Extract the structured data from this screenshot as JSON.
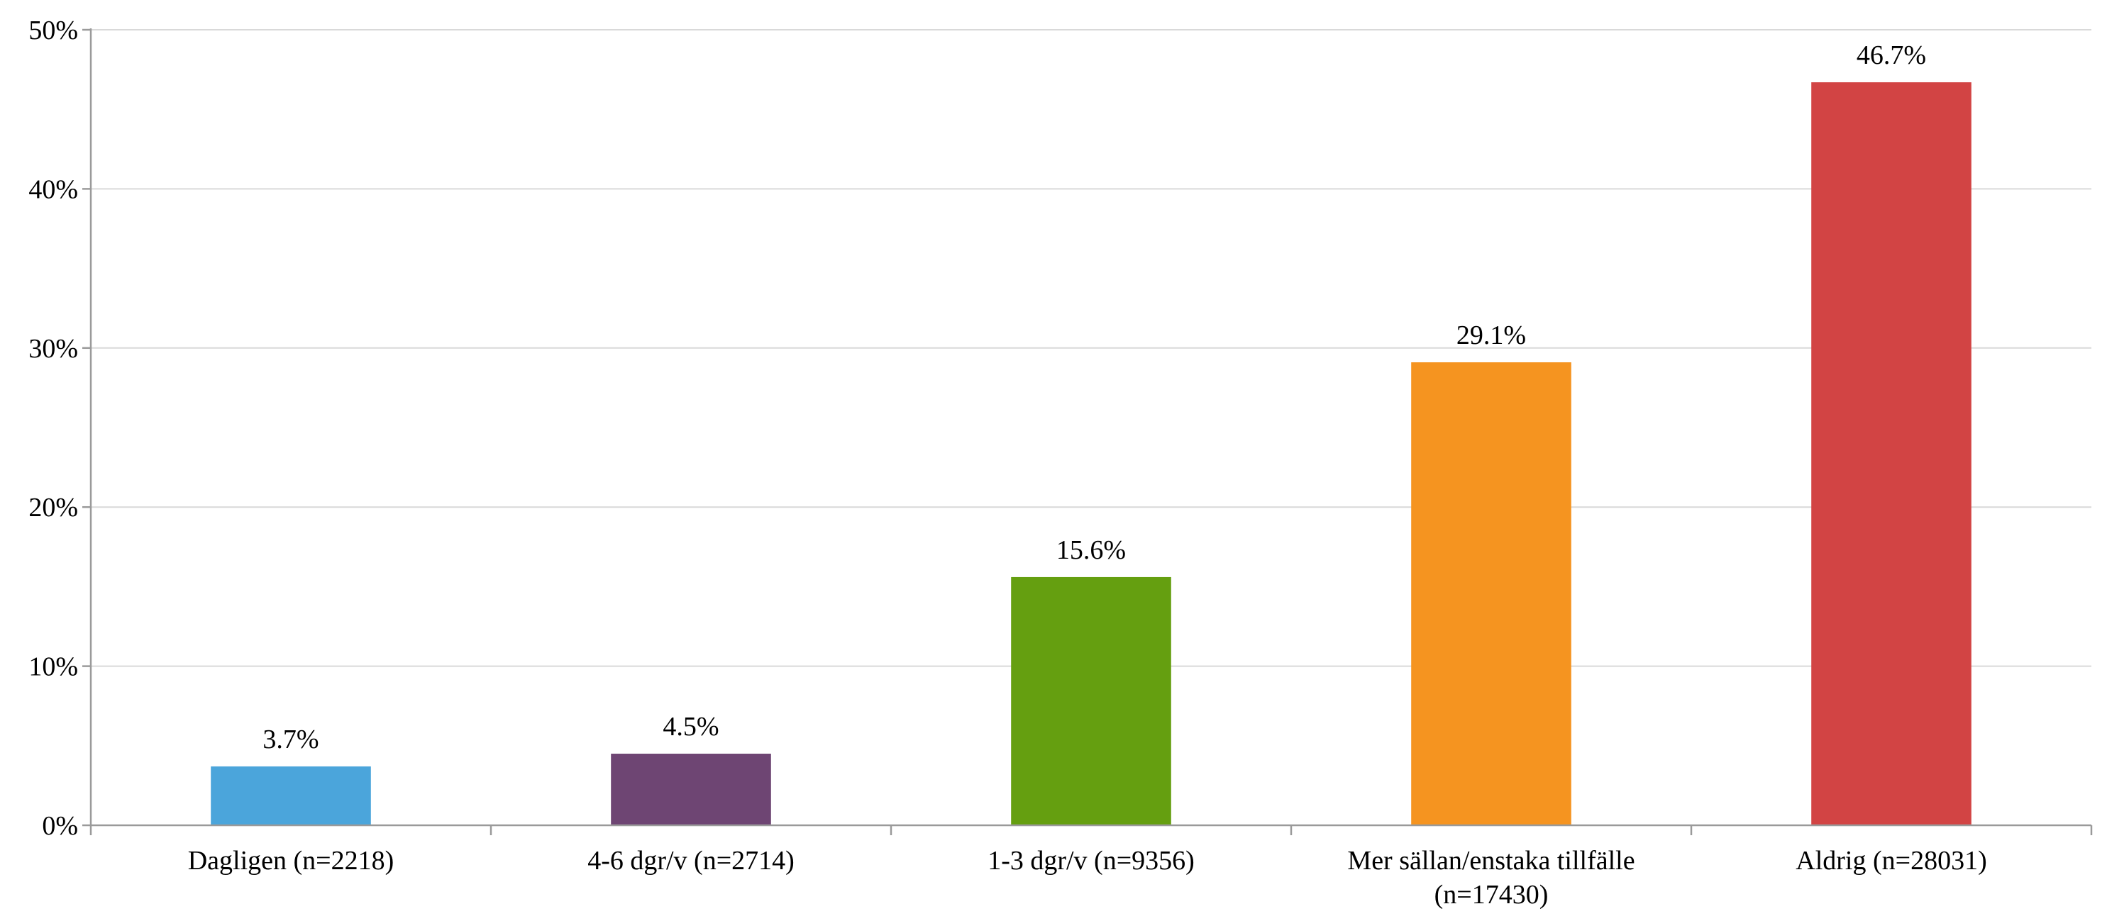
{
  "chart_data": {
    "type": "bar",
    "title": "",
    "xlabel": "",
    "ylabel": "",
    "ylim": [
      0,
      50
    ],
    "y_ticks": [
      0,
      10,
      20,
      30,
      40,
      50
    ],
    "y_tick_labels": [
      "0%",
      "10%",
      "20%",
      "30%",
      "40%",
      "50%"
    ],
    "grid": true,
    "legend": "none",
    "categories": [
      [
        "Dagligen (n=2218)"
      ],
      [
        "4-6 dgr/v (n=2714)"
      ],
      [
        "1-3 dgr/v (n=9356)"
      ],
      [
        "Mer sällan/enstaka tillfälle",
        "(n=17430)"
      ],
      [
        "Aldrig (n=28031)"
      ]
    ],
    "values": [
      3.7,
      4.5,
      15.6,
      29.1,
      46.7
    ],
    "data_labels": [
      "3.7%",
      "4.5%",
      "15.6%",
      "29.1%",
      "46.7%"
    ],
    "colors": [
      "#4ba5db",
      "#6e4573",
      "#659f10",
      "#f59420",
      "#d24444"
    ]
  }
}
